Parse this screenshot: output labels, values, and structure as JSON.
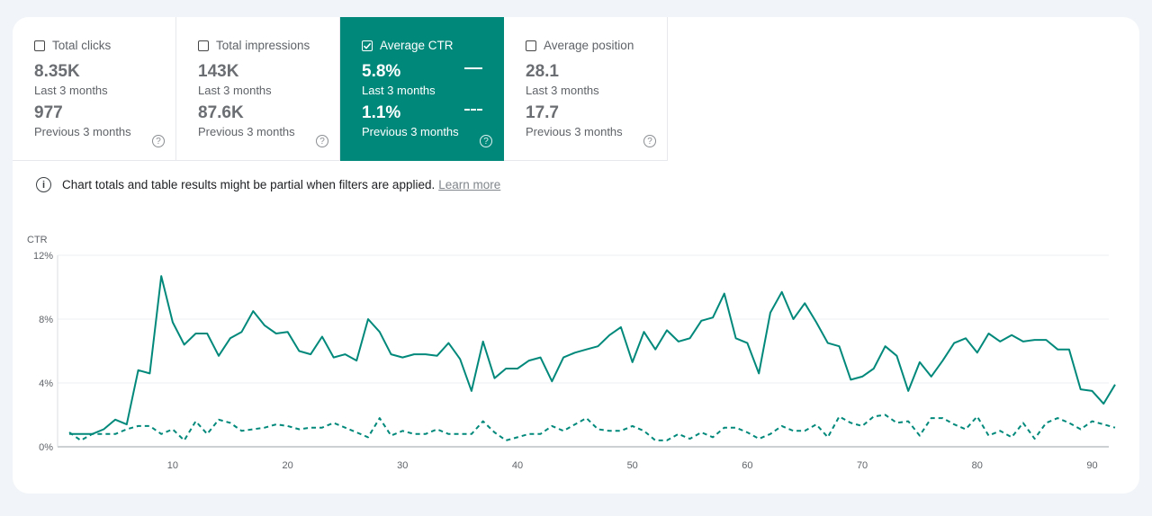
{
  "metrics": [
    {
      "label": "Total clicks",
      "current": "8.35K",
      "current_period": "Last 3 months",
      "previous": "977",
      "previous_period": "Previous 3 months",
      "checked": false
    },
    {
      "label": "Total impressions",
      "current": "143K",
      "current_period": "Last 3 months",
      "previous": "87.6K",
      "previous_period": "Previous 3 months",
      "checked": false
    },
    {
      "label": "Average CTR",
      "current": "5.8%",
      "current_period": "Last 3 months",
      "previous": "1.1%",
      "previous_period": "Previous 3 months",
      "checked": true
    },
    {
      "label": "Average position",
      "current": "28.1",
      "current_period": "Last 3 months",
      "previous": "17.7",
      "previous_period": "Previous 3 months",
      "checked": false
    }
  ],
  "help_icon": "?",
  "notice": {
    "icon": "info-icon",
    "text": "Chart totals and table results might be partial when filters are applied.",
    "link": "Learn more"
  },
  "colors": {
    "accent": "#00897b"
  },
  "chart_data": {
    "type": "line",
    "ylabel": "CTR",
    "ylim": [
      0,
      12
    ],
    "yticks": [
      "0%",
      "4%",
      "8%",
      "12%"
    ],
    "xlim": [
      1,
      92
    ],
    "xticks": [
      10,
      20,
      30,
      40,
      50,
      60,
      70,
      80,
      90
    ],
    "grid": true,
    "x": [
      1,
      2,
      3,
      4,
      5,
      6,
      7,
      8,
      9,
      10,
      11,
      12,
      13,
      14,
      15,
      16,
      17,
      18,
      19,
      20,
      21,
      22,
      23,
      24,
      25,
      26,
      27,
      28,
      29,
      30,
      31,
      32,
      33,
      34,
      35,
      36,
      37,
      38,
      39,
      40,
      41,
      42,
      43,
      44,
      45,
      46,
      47,
      48,
      49,
      50,
      51,
      52,
      53,
      54,
      55,
      56,
      57,
      58,
      59,
      60,
      61,
      62,
      63,
      64,
      65,
      66,
      67,
      68,
      69,
      70,
      71,
      72,
      73,
      74,
      75,
      76,
      77,
      78,
      79,
      80,
      81,
      82,
      83,
      84,
      85,
      86,
      87,
      88,
      89,
      90,
      91,
      92
    ],
    "series": [
      {
        "style": "solid",
        "values": [
          0.8,
          0.8,
          0.8,
          1.1,
          1.7,
          1.4,
          4.8,
          4.6,
          10.7,
          7.8,
          6.4,
          7.1,
          7.1,
          5.7,
          6.8,
          7.2,
          8.5,
          7.6,
          7.1,
          7.2,
          6.0,
          5.8,
          6.9,
          5.6,
          5.8,
          5.4,
          8.0,
          7.2,
          5.8,
          5.6,
          5.8,
          5.8,
          5.7,
          6.5,
          5.5,
          3.5,
          6.6,
          4.3,
          4.9,
          4.9,
          5.4,
          5.6,
          4.1,
          5.6,
          5.9,
          6.1,
          6.3,
          7.0,
          7.5,
          5.3,
          7.2,
          6.1,
          7.3,
          6.6,
          6.8,
          7.9,
          8.1,
          9.6,
          6.8,
          6.5,
          4.6,
          8.4,
          9.7,
          8.0,
          9.0,
          7.8,
          6.5,
          6.3,
          4.2,
          4.4,
          4.9,
          6.3,
          5.7,
          3.5,
          5.3,
          4.4,
          5.4,
          6.5,
          6.8,
          5.9,
          7.1,
          6.6,
          7.0,
          6.6,
          6.7,
          6.7,
          6.1,
          6.1,
          3.6,
          3.5,
          2.7,
          3.9
        ]
      },
      {
        "style": "dashed",
        "values": [
          0.9,
          0.4,
          0.8,
          0.8,
          0.8,
          1.1,
          1.3,
          1.3,
          0.8,
          1.1,
          0.4,
          1.6,
          0.8,
          1.7,
          1.5,
          1.0,
          1.1,
          1.2,
          1.4,
          1.3,
          1.1,
          1.2,
          1.2,
          1.5,
          1.2,
          0.9,
          0.6,
          1.8,
          0.7,
          1.0,
          0.8,
          0.8,
          1.1,
          0.8,
          0.8,
          0.8,
          1.6,
          0.9,
          0.4,
          0.6,
          0.8,
          0.8,
          1.3,
          1.0,
          1.4,
          1.8,
          1.1,
          1.0,
          1.0,
          1.3,
          1.0,
          0.4,
          0.4,
          0.8,
          0.5,
          0.9,
          0.6,
          1.2,
          1.2,
          0.9,
          0.5,
          0.8,
          1.3,
          1.0,
          1.0,
          1.4,
          0.6,
          1.9,
          1.5,
          1.3,
          1.9,
          2.0,
          1.5,
          1.6,
          0.7,
          1.8,
          1.8,
          1.4,
          1.1,
          1.9,
          0.7,
          1.0,
          0.6,
          1.5,
          0.5,
          1.5,
          1.8,
          1.5,
          1.1,
          1.6,
          1.4,
          1.2
        ]
      }
    ]
  }
}
